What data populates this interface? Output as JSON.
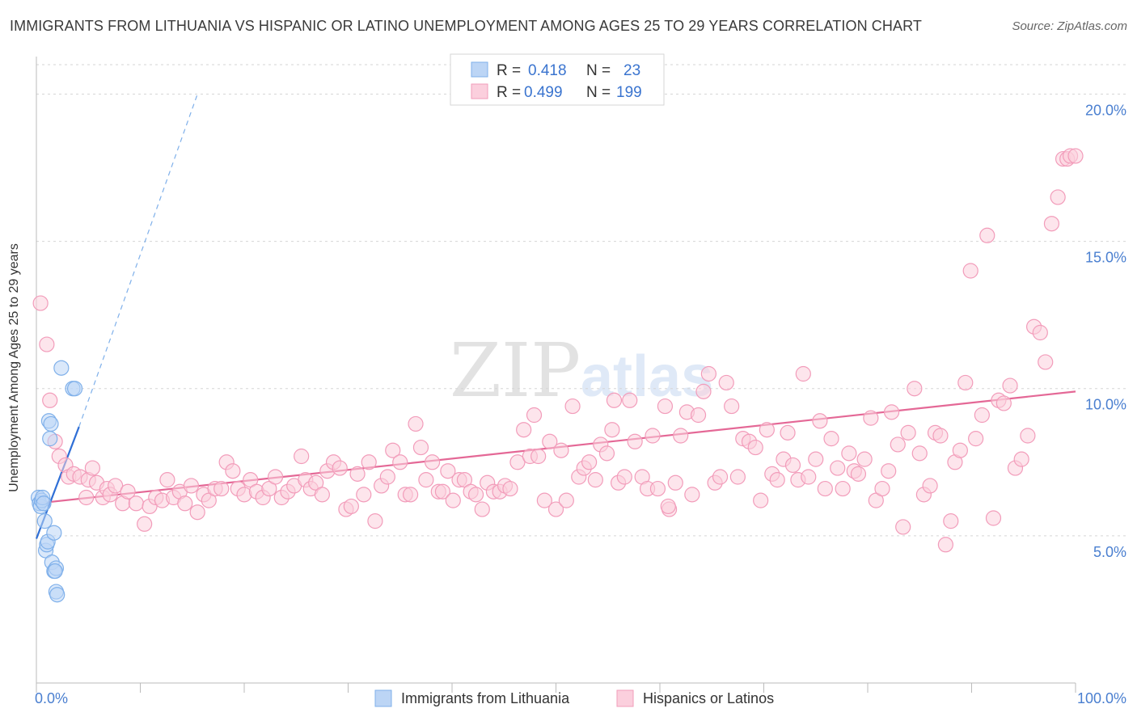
{
  "header": {
    "title": "IMMIGRANTS FROM LITHUANIA VS HISPANIC OR LATINO UNEMPLOYMENT AMONG AGES 25 TO 29 YEARS CORRELATION CHART",
    "source": "Source: ZipAtlas.com"
  },
  "watermark": {
    "zip": "ZIP",
    "atlas": "atlas"
  },
  "colors": {
    "blue": "#7fb0ea",
    "blue_line": "#2f6fd6",
    "blue_fill": "#bcd5f5",
    "pink": "#f29cba",
    "pink_line": "#e46896",
    "pink_fill": "#fbcfdd",
    "tick_label": "#4a7fd0",
    "grid": "#d5d5d5"
  },
  "legend": {
    "rows": [
      {
        "r_label": "R = ",
        "r_value": "0.418",
        "n_label": "N = ",
        "n_value": "23"
      },
      {
        "r_label": "R = ",
        "r_value": "0.499",
        "n_label": "N = ",
        "n_value": "199"
      }
    ]
  },
  "chart_data": {
    "type": "scatter",
    "title": "IMMIGRANTS FROM LITHUANIA VS HISPANIC OR LATINO UNEMPLOYMENT AMONG AGES 25 TO 29 YEARS CORRELATION CHART",
    "xlabel": "",
    "ylabel": "Unemployment Among Ages 25 to 29 years",
    "xlim": [
      0,
      100
    ],
    "ylim": [
      0,
      21
    ],
    "x_tick_labels": [
      "0.0%",
      "100.0%"
    ],
    "y_ticks": [
      5,
      10,
      15,
      20
    ],
    "y_tick_labels": [
      "5.0%",
      "10.0%",
      "15.0%",
      "20.0%"
    ],
    "legend_position": "bottom",
    "series": [
      {
        "name": "Immigrants from Lithuania",
        "color": "#7fb0ea",
        "r": 0.418,
        "n": 23,
        "trend": {
          "x0": 0,
          "y0": 4.9,
          "x1": 4.1,
          "y1": 8.7,
          "dash_x1": 15.5,
          "dash_y1": 20.0
        },
        "points": [
          [
            0.2,
            6.3
          ],
          [
            0.3,
            6.1
          ],
          [
            0.4,
            6.0
          ],
          [
            0.5,
            6.2
          ],
          [
            0.6,
            6.3
          ],
          [
            0.7,
            6.1
          ],
          [
            0.8,
            5.5
          ],
          [
            0.9,
            4.5
          ],
          [
            1.0,
            4.7
          ],
          [
            1.1,
            4.8
          ],
          [
            1.2,
            8.9
          ],
          [
            1.3,
            8.3
          ],
          [
            1.4,
            8.8
          ],
          [
            1.5,
            4.1
          ],
          [
            1.7,
            5.1
          ],
          [
            1.7,
            3.8
          ],
          [
            1.9,
            3.1
          ],
          [
            1.9,
            3.9
          ],
          [
            2.0,
            3.0
          ],
          [
            2.4,
            10.7
          ],
          [
            3.5,
            10.0
          ],
          [
            3.7,
            10.0
          ],
          [
            1.8,
            3.8
          ]
        ]
      },
      {
        "name": "Hispanics or Latinos",
        "color": "#f29cba",
        "r": 0.499,
        "n": 199,
        "trend": {
          "x0": 0,
          "y0": 6.1,
          "x1": 100,
          "y1": 9.9
        },
        "points": [
          [
            0.4,
            12.9
          ],
          [
            1.0,
            11.5
          ],
          [
            1.3,
            9.6
          ],
          [
            1.8,
            8.2
          ],
          [
            2.2,
            7.7
          ],
          [
            2.8,
            7.4
          ],
          [
            3.1,
            7.0
          ],
          [
            3.6,
            7.1
          ],
          [
            4.2,
            7.0
          ],
          [
            4.8,
            6.3
          ],
          [
            5.0,
            6.9
          ],
          [
            5.4,
            7.3
          ],
          [
            5.8,
            6.8
          ],
          [
            6.4,
            6.3
          ],
          [
            6.8,
            6.6
          ],
          [
            7.1,
            6.4
          ],
          [
            7.6,
            6.7
          ],
          [
            8.3,
            6.1
          ],
          [
            8.8,
            6.5
          ],
          [
            9.6,
            6.1
          ],
          [
            10.4,
            5.4
          ],
          [
            10.9,
            6.0
          ],
          [
            11.5,
            6.3
          ],
          [
            12.1,
            6.2
          ],
          [
            12.6,
            6.9
          ],
          [
            13.2,
            6.3
          ],
          [
            13.8,
            6.5
          ],
          [
            14.3,
            6.1
          ],
          [
            14.9,
            6.7
          ],
          [
            15.5,
            5.8
          ],
          [
            16.1,
            6.4
          ],
          [
            16.6,
            6.2
          ],
          [
            17.2,
            6.6
          ],
          [
            17.8,
            6.6
          ],
          [
            18.3,
            7.5
          ],
          [
            18.9,
            7.2
          ],
          [
            19.4,
            6.6
          ],
          [
            20.0,
            6.4
          ],
          [
            20.6,
            6.9
          ],
          [
            21.2,
            6.5
          ],
          [
            21.8,
            6.3
          ],
          [
            22.4,
            6.6
          ],
          [
            23.0,
            7.0
          ],
          [
            23.6,
            6.3
          ],
          [
            24.2,
            6.5
          ],
          [
            24.8,
            6.7
          ],
          [
            25.5,
            7.7
          ],
          [
            25.9,
            6.9
          ],
          [
            26.4,
            6.6
          ],
          [
            26.9,
            6.8
          ],
          [
            27.5,
            6.4
          ],
          [
            28.0,
            7.2
          ],
          [
            28.6,
            7.5
          ],
          [
            29.2,
            7.3
          ],
          [
            29.8,
            5.9
          ],
          [
            30.3,
            6.0
          ],
          [
            30.9,
            7.1
          ],
          [
            31.5,
            6.4
          ],
          [
            32.0,
            7.5
          ],
          [
            32.6,
            5.5
          ],
          [
            33.2,
            6.7
          ],
          [
            33.8,
            7.0
          ],
          [
            34.3,
            7.9
          ],
          [
            35.0,
            7.5
          ],
          [
            35.5,
            6.4
          ],
          [
            36.0,
            6.4
          ],
          [
            36.5,
            8.8
          ],
          [
            37.0,
            8.0
          ],
          [
            37.5,
            6.9
          ],
          [
            38.1,
            7.5
          ],
          [
            38.7,
            6.5
          ],
          [
            39.1,
            6.5
          ],
          [
            39.6,
            7.2
          ],
          [
            40.1,
            6.2
          ],
          [
            40.7,
            6.9
          ],
          [
            41.2,
            6.9
          ],
          [
            41.8,
            6.5
          ],
          [
            42.3,
            6.4
          ],
          [
            42.9,
            5.9
          ],
          [
            43.4,
            6.8
          ],
          [
            44.0,
            6.5
          ],
          [
            44.6,
            6.5
          ],
          [
            45.1,
            6.7
          ],
          [
            45.6,
            6.6
          ],
          [
            46.3,
            7.5
          ],
          [
            46.9,
            8.6
          ],
          [
            47.5,
            7.7
          ],
          [
            47.9,
            9.1
          ],
          [
            48.3,
            7.7
          ],
          [
            48.9,
            6.2
          ],
          [
            49.4,
            8.2
          ],
          [
            50.0,
            5.9
          ],
          [
            50.5,
            7.9
          ],
          [
            51.0,
            6.2
          ],
          [
            51.6,
            9.4
          ],
          [
            52.2,
            7.0
          ],
          [
            52.7,
            7.3
          ],
          [
            53.2,
            7.5
          ],
          [
            53.8,
            6.9
          ],
          [
            54.3,
            8.1
          ],
          [
            54.9,
            7.8
          ],
          [
            55.4,
            8.6
          ],
          [
            55.6,
            9.6
          ],
          [
            56.0,
            6.8
          ],
          [
            56.6,
            7.0
          ],
          [
            57.1,
            9.6
          ],
          [
            57.6,
            8.2
          ],
          [
            58.3,
            7.0
          ],
          [
            58.8,
            6.6
          ],
          [
            59.3,
            8.4
          ],
          [
            59.8,
            6.6
          ],
          [
            60.5,
            9.4
          ],
          [
            60.9,
            5.9
          ],
          [
            61.5,
            6.8
          ],
          [
            62.0,
            8.4
          ],
          [
            62.6,
            9.2
          ],
          [
            63.1,
            6.4
          ],
          [
            63.7,
            9.1
          ],
          [
            64.2,
            9.9
          ],
          [
            64.7,
            10.5
          ],
          [
            65.3,
            6.8
          ],
          [
            65.8,
            7.0
          ],
          [
            66.4,
            10.2
          ],
          [
            66.9,
            9.4
          ],
          [
            67.5,
            7.0
          ],
          [
            68.0,
            8.3
          ],
          [
            68.6,
            8.2
          ],
          [
            69.2,
            8.0
          ],
          [
            69.7,
            6.2
          ],
          [
            70.3,
            8.6
          ],
          [
            70.8,
            7.1
          ],
          [
            71.3,
            6.9
          ],
          [
            71.9,
            7.6
          ],
          [
            72.3,
            8.5
          ],
          [
            72.8,
            7.4
          ],
          [
            73.3,
            6.9
          ],
          [
            73.8,
            10.5
          ],
          [
            74.3,
            7.0
          ],
          [
            75.0,
            7.6
          ],
          [
            75.4,
            8.9
          ],
          [
            75.9,
            6.6
          ],
          [
            76.5,
            8.3
          ],
          [
            77.1,
            7.3
          ],
          [
            77.6,
            6.6
          ],
          [
            78.2,
            7.8
          ],
          [
            78.7,
            7.2
          ],
          [
            79.1,
            7.1
          ],
          [
            79.7,
            7.6
          ],
          [
            80.3,
            9.0
          ],
          [
            80.8,
            6.2
          ],
          [
            81.4,
            6.6
          ],
          [
            82.0,
            7.2
          ],
          [
            82.3,
            9.2
          ],
          [
            82.9,
            8.1
          ],
          [
            83.4,
            5.3
          ],
          [
            83.9,
            8.5
          ],
          [
            84.5,
            10.0
          ],
          [
            85.0,
            7.8
          ],
          [
            85.4,
            6.4
          ],
          [
            86.0,
            6.7
          ],
          [
            86.5,
            8.5
          ],
          [
            87.0,
            8.4
          ],
          [
            87.5,
            4.7
          ],
          [
            88.0,
            5.5
          ],
          [
            88.4,
            7.5
          ],
          [
            88.9,
            7.9
          ],
          [
            89.4,
            10.2
          ],
          [
            89.9,
            14.0
          ],
          [
            90.4,
            8.3
          ],
          [
            91.0,
            9.1
          ],
          [
            91.5,
            15.2
          ],
          [
            92.1,
            5.6
          ],
          [
            92.6,
            9.6
          ],
          [
            93.1,
            9.5
          ],
          [
            93.7,
            10.1
          ],
          [
            94.2,
            7.3
          ],
          [
            94.8,
            7.6
          ],
          [
            95.4,
            8.4
          ],
          [
            96.0,
            12.1
          ],
          [
            96.6,
            11.9
          ],
          [
            97.1,
            10.9
          ],
          [
            97.7,
            15.6
          ],
          [
            98.3,
            16.5
          ],
          [
            98.8,
            17.8
          ],
          [
            99.2,
            17.8
          ],
          [
            99.5,
            17.9
          ],
          [
            60.8,
            6.0
          ],
          [
            100.0,
            17.9
          ]
        ]
      }
    ]
  },
  "bottom_legend": {
    "items": [
      "Immigrants from Lithuania",
      "Hispanics or Latinos"
    ]
  }
}
